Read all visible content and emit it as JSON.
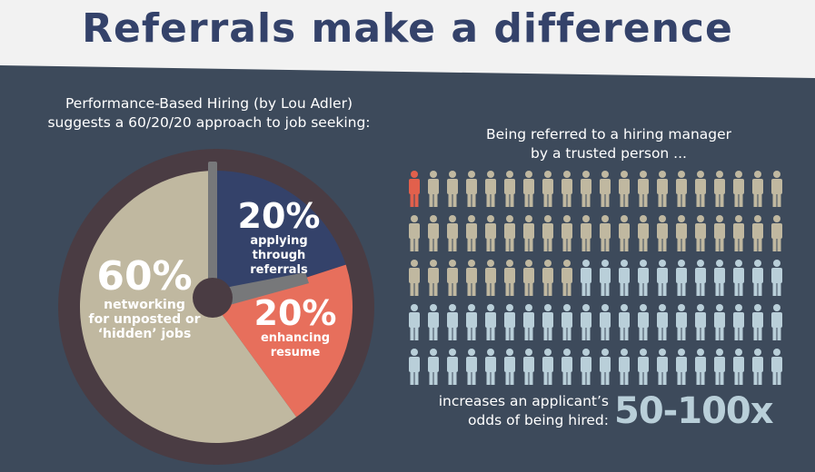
{
  "title": "Referrals make a difference",
  "intro": {
    "line1": "Performance-Based Hiring (by Lou Adler)",
    "line2": "suggests a 60/20/20 approach to job seeking:"
  },
  "chart_data": [
    {
      "type": "pie",
      "slices": [
        {
          "percent_label": "20%",
          "value": 20,
          "lines": [
            "applying through",
            "referrals"
          ],
          "color": "#34426a"
        },
        {
          "percent_label": "20%",
          "value": 20,
          "lines": [
            "enhancing",
            "resume"
          ],
          "color": "#e76f5c"
        },
        {
          "percent_label": "60%",
          "value": 60,
          "lines": [
            "networking",
            "for unposted or",
            "‘hidden’ jobs"
          ],
          "color": "#c0b8a0"
        }
      ]
    },
    {
      "type": "pictogram",
      "heading_lines": [
        "Being referred to a hiring manager",
        "by a trusted person ..."
      ],
      "rows": 5,
      "columns": 20,
      "counts": {
        "highlighted": 1,
        "tan": 48,
        "light_blue": 51
      },
      "colors": {
        "highlighted": "#e2604c",
        "tan": "#c0b8a0",
        "light_blue": "#b9cfd9"
      },
      "result_lines": [
        "increases an applicant’s",
        "odds of being hired:"
      ],
      "result_value": "50-100x"
    }
  ],
  "colors": {
    "background": "#3d4a5b",
    "header_band": "#f2f2f2",
    "title": "#34426a",
    "pie_rim": "#4a3c43",
    "clock_hand": "#77787a"
  }
}
